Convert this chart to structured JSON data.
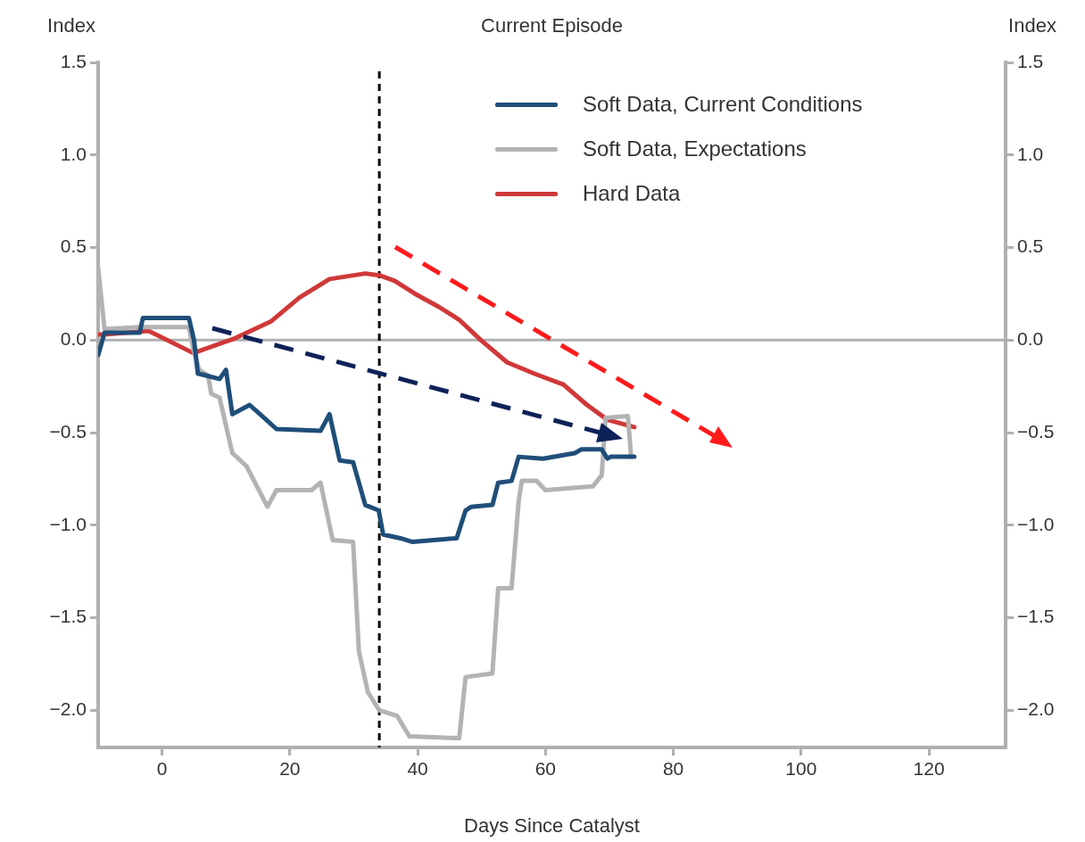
{
  "chart_data": {
    "type": "line",
    "title": "Current Episode",
    "xlabel": "Days Since Catalyst",
    "ylabel": "Index",
    "y2label": "Index",
    "xlim": [
      -10,
      132
    ],
    "xticks": [
      0,
      20,
      40,
      60,
      80,
      100,
      120
    ],
    "ylim": [
      -2.2,
      1.5
    ],
    "yticks": [
      {
        "value": 1.5,
        "label": "1.5"
      },
      {
        "value": 1,
        "label": "1.0"
      },
      {
        "value": 0.5,
        "label": "0.5"
      },
      {
        "value": 0,
        "label": "0.0"
      },
      {
        "value": -0.5,
        "label": "−0.5"
      },
      {
        "value": -1,
        "label": "−1.0"
      },
      {
        "value": -1.5,
        "label": "−1.5"
      },
      {
        "value": -2,
        "label": "−2.0"
      }
    ],
    "y2lim": [
      -2.2,
      1.5
    ],
    "y2ticks": [
      {
        "value": 1.5,
        "label": "1.5"
      },
      {
        "value": 1,
        "label": "1.0"
      },
      {
        "value": 0.5,
        "label": "0.5"
      },
      {
        "value": 0,
        "label": "0.0"
      },
      {
        "value": -0.5,
        "label": "−0.5"
      },
      {
        "value": -1,
        "label": "−1.0"
      },
      {
        "value": -1.5,
        "label": "−1.5"
      },
      {
        "value": -2,
        "label": "−2.0"
      }
    ],
    "grid": false,
    "legend": "top right",
    "marker": "none",
    "line_style": "solid",
    "ref_lines": [
      {
        "axis": "y",
        "value": 0,
        "label": null,
        "color": "#b0b0b0",
        "line_style": "solid"
      },
      {
        "axis": "x",
        "value": 34,
        "label": null,
        "color": "#000000",
        "line_style": "dashed"
      }
    ],
    "series": [
      {
        "name": "Soft Data, Current Conditions",
        "color": "#1f4e79",
        "x": [
          -10,
          -9,
          -3.5,
          -3,
          4.2,
          5,
          5.6,
          9,
          10,
          11,
          13.7,
          16,
          17.9,
          24.8,
          26.2,
          27.8,
          29.9,
          31.8,
          33.9,
          34.6,
          37.3,
          39.2,
          46.1,
          47.5,
          48.4,
          51.7,
          52.6,
          54.7,
          55.8,
          59.6,
          64.6,
          65.6,
          68.8,
          69.7,
          70.2,
          73.9
        ],
        "values": [
          -0.08,
          0.04,
          0.04,
          0.12,
          0.12,
          0,
          -0.18,
          -0.21,
          -0.16,
          -0.4,
          -0.35,
          -0.42,
          -0.48,
          -0.49,
          -0.4,
          -0.65,
          -0.66,
          -0.89,
          -0.92,
          -1.05,
          -1.07,
          -1.09,
          -1.07,
          -0.92,
          -0.9,
          -0.89,
          -0.77,
          -0.76,
          -0.63,
          -0.64,
          -0.61,
          -0.59,
          -0.59,
          -0.64,
          -0.63,
          -0.63
        ]
      },
      {
        "name": "Soft Data, Expectations",
        "color": "#b3b3b3",
        "x": [
          -10,
          -9,
          -3.5,
          4.2,
          4.9,
          5.8,
          7.2,
          7.7,
          9,
          11,
          13.2,
          16.5,
          17.9,
          23.4,
          24.8,
          26.7,
          29.9,
          30.8,
          32.2,
          34,
          36.8,
          38.7,
          46.5,
          47.5,
          51.7,
          52.6,
          54.7,
          55.8,
          56.3,
          58.6,
          60,
          67.4,
          68.8,
          69.4,
          72.9,
          73.4
        ],
        "values": [
          0.39,
          0.06,
          0.07,
          0.07,
          -0.05,
          -0.16,
          -0.19,
          -0.29,
          -0.31,
          -0.61,
          -0.68,
          -0.9,
          -0.81,
          -0.81,
          -0.77,
          -1.08,
          -1.09,
          -1.68,
          -1.9,
          -2,
          -2.03,
          -2.14,
          -2.15,
          -1.82,
          -1.8,
          -1.34,
          -1.34,
          -0.87,
          -0.76,
          -0.76,
          -0.81,
          -0.79,
          -0.73,
          -0.42,
          -0.41,
          -0.63
        ]
      },
      {
        "name": "Hard Data",
        "color": "#d03838",
        "x": [
          -10,
          -9,
          -2.1,
          4.9,
          11.4,
          17,
          21.5,
          26.2,
          31.8,
          34,
          36.4,
          39.6,
          43.3,
          46.5,
          49.9,
          54,
          58.2,
          62.8,
          66.5,
          69.7,
          73.9
        ],
        "values": [
          0.03,
          0.03,
          0.05,
          -0.07,
          0.01,
          0.1,
          0.23,
          0.33,
          0.36,
          0.35,
          0.32,
          0.25,
          0.18,
          0.11,
          0,
          -0.12,
          -0.18,
          -0.24,
          -0.35,
          -0.43,
          -0.47
        ]
      }
    ]
  }
}
